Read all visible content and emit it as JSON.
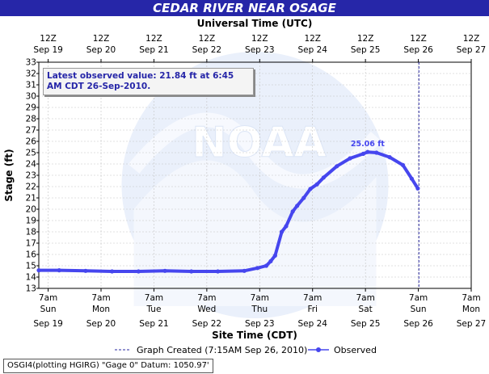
{
  "title": "CEDAR RIVER NEAR OSAGE",
  "watermark": "NOAA",
  "latest_observed_text": "Latest observed value: 21.84 ft at 6:45 AM CDT 26-Sep-2010.",
  "footer_text": "OSGI4(plotting HGIRG) \"Gage 0\" Datum: 1050.97'",
  "colors": {
    "title_bar": "#2626a8",
    "series": "#4646ee",
    "graph_created_line": "#2a2aa0"
  },
  "chart_data": {
    "type": "line",
    "title": "CEDAR RIVER NEAR OSAGE",
    "top_axis": {
      "label": "Universal Time (UTC)",
      "ticks": [
        {
          "hour": "12Z",
          "date": "Sep 19"
        },
        {
          "hour": "12Z",
          "date": "Sep 20"
        },
        {
          "hour": "12Z",
          "date": "Sep 21"
        },
        {
          "hour": "12Z",
          "date": "Sep 22"
        },
        {
          "hour": "12Z",
          "date": "Sep 23"
        },
        {
          "hour": "12Z",
          "date": "Sep 24"
        },
        {
          "hour": "12Z",
          "date": "Sep 25"
        },
        {
          "hour": "12Z",
          "date": "Sep 26"
        },
        {
          "hour": "12Z",
          "date": "Sep 27"
        }
      ]
    },
    "bottom_axis": {
      "label": "Site Time (CDT)",
      "ticks": [
        {
          "time": "7am",
          "day": "Sun",
          "date": "Sep 19"
        },
        {
          "time": "7am",
          "day": "Mon",
          "date": "Sep 20"
        },
        {
          "time": "7am",
          "day": "Tue",
          "date": "Sep 21"
        },
        {
          "time": "7am",
          "day": "Wed",
          "date": "Sep 22"
        },
        {
          "time": "7am",
          "day": "Thu",
          "date": "Sep 23"
        },
        {
          "time": "7am",
          "day": "Fri",
          "date": "Sep 24"
        },
        {
          "time": "7am",
          "day": "Sat",
          "date": "Sep 25"
        },
        {
          "time": "7am",
          "day": "Sun",
          "date": "Sep 26"
        },
        {
          "time": "7am",
          "day": "Mon",
          "date": "Sep 27"
        }
      ]
    },
    "xlim": [
      "2010-09-19 02:45 CDT",
      "2010-09-27 07:00 CDT"
    ],
    "ylabel": "Stage (ft)",
    "ylim": [
      13,
      33
    ],
    "yticks": [
      13,
      14,
      15,
      16,
      17,
      18,
      19,
      20,
      21,
      22,
      23,
      24,
      25,
      26,
      27,
      28,
      29,
      30,
      31,
      32,
      33
    ],
    "grid": true,
    "series": [
      {
        "name": "Observed",
        "points": [
          [
            "2010-09-19 02:45",
            14.6
          ],
          [
            "2010-09-19 12:00",
            14.6
          ],
          [
            "2010-09-20 00:00",
            14.55
          ],
          [
            "2010-09-20 12:00",
            14.5
          ],
          [
            "2010-09-21 00:00",
            14.5
          ],
          [
            "2010-09-21 12:00",
            14.55
          ],
          [
            "2010-09-22 00:00",
            14.5
          ],
          [
            "2010-09-22 12:00",
            14.5
          ],
          [
            "2010-09-23 00:00",
            14.55
          ],
          [
            "2010-09-23 06:00",
            14.8
          ],
          [
            "2010-09-23 10:00",
            15.0
          ],
          [
            "2010-09-23 12:00",
            15.4
          ],
          [
            "2010-09-23 14:00",
            15.9
          ],
          [
            "2010-09-23 17:00",
            18.0
          ],
          [
            "2010-09-23 19:00",
            18.5
          ],
          [
            "2010-09-23 22:00",
            19.8
          ],
          [
            "2010-09-24 00:00",
            20.3
          ],
          [
            "2010-09-24 03:00",
            21.0
          ],
          [
            "2010-09-24 06:00",
            21.8
          ],
          [
            "2010-09-24 09:00",
            22.2
          ],
          [
            "2010-09-24 12:00",
            22.8
          ],
          [
            "2010-09-24 18:00",
            23.8
          ],
          [
            "2010-09-25 00:00",
            24.5
          ],
          [
            "2010-09-25 06:00",
            24.9
          ],
          [
            "2010-09-25 08:00",
            25.06
          ],
          [
            "2010-09-25 12:00",
            25.0
          ],
          [
            "2010-09-25 18:00",
            24.6
          ],
          [
            "2010-09-26 00:00",
            23.9
          ],
          [
            "2010-09-26 04:00",
            22.7
          ],
          [
            "2010-09-26 06:45",
            21.84
          ]
        ]
      }
    ],
    "annotations": [
      {
        "text": "25.06 ft",
        "x": "2010-09-25 08:00",
        "y": 25.06
      }
    ],
    "graph_created_line": {
      "x": "2010-09-26 07:15"
    },
    "legend": {
      "placement": "bottom",
      "graph_created_label": "Graph Created (7:15AM Sep 26, 2010)",
      "observed_label": "Observed"
    }
  }
}
